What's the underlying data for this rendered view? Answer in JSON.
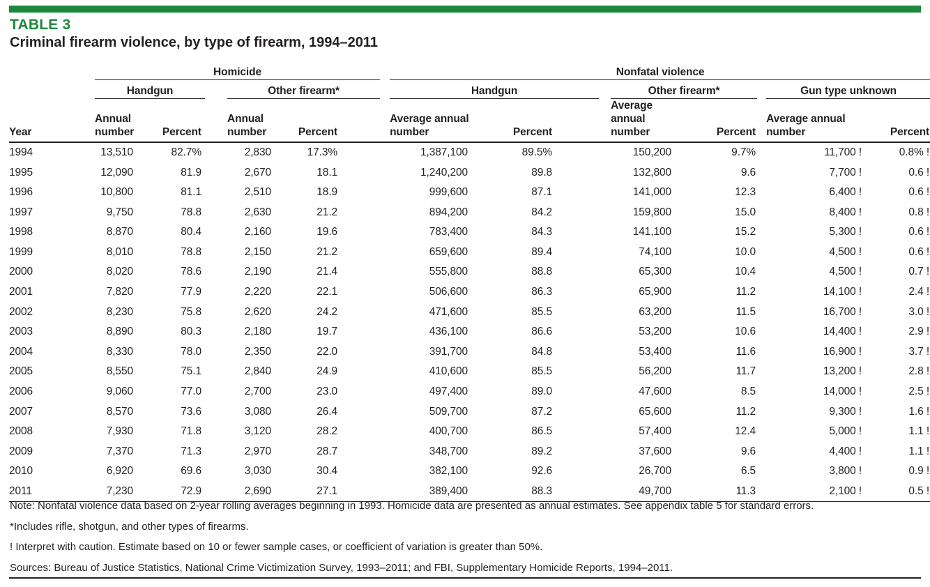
{
  "accent_color": "#1e873c",
  "header": {
    "table_label": "TABLE 3",
    "title": "Criminal firearm violence, by type of firearm, 1994–2011"
  },
  "table": {
    "groups": {
      "homicide": "Homicide",
      "nonfatal": "Nonfatal violence"
    },
    "subgroups": {
      "homicide_handgun": "Handgun",
      "homicide_other": "Other firearm*",
      "nonfatal_handgun": "Handgun",
      "nonfatal_other": "Other firearm*",
      "nonfatal_unknown": "Gun type unknown"
    },
    "columns": {
      "year": "Year",
      "annual_number": "Annual\nnumber",
      "avg_annual_number": "Average annual\nnumber",
      "percent": "Percent"
    },
    "rows": [
      [
        "1994",
        "13,510",
        "82.7%",
        "2,830",
        "17.3%",
        "1,387,100",
        "89.5%",
        "150,200",
        "9.7%",
        "11,700 !",
        "0.8% !"
      ],
      [
        "1995",
        "12,090",
        "81.9",
        "2,670",
        "18.1",
        "1,240,200",
        "89.8",
        "132,800",
        "9.6",
        "7,700 !",
        "0.6 !"
      ],
      [
        "1996",
        "10,800",
        "81.1",
        "2,510",
        "18.9",
        "999,600",
        "87.1",
        "141,000",
        "12.3",
        "6,400 !",
        "0.6 !"
      ],
      [
        "1997",
        "9,750",
        "78.8",
        "2,630",
        "21.2",
        "894,200",
        "84.2",
        "159,800",
        "15.0",
        "8,400 !",
        "0.8 !"
      ],
      [
        "1998",
        "8,870",
        "80.4",
        "2,160",
        "19.6",
        "783,400",
        "84.3",
        "141,100",
        "15.2",
        "5,300 !",
        "0.6 !"
      ],
      [
        "1999",
        "8,010",
        "78.8",
        "2,150",
        "21.2",
        "659,600",
        "89.4",
        "74,100",
        "10.0",
        "4,500 !",
        "0.6 !"
      ],
      [
        "2000",
        "8,020",
        "78.6",
        "2,190",
        "21.4",
        "555,800",
        "88.8",
        "65,300",
        "10.4",
        "4,500 !",
        "0.7 !"
      ],
      [
        "2001",
        "7,820",
        "77.9",
        "2,220",
        "22.1",
        "506,600",
        "86.3",
        "65,900",
        "11.2",
        "14,100 !",
        "2.4 !"
      ],
      [
        "2002",
        "8,230",
        "75.8",
        "2,620",
        "24.2",
        "471,600",
        "85.5",
        "63,200",
        "11.5",
        "16,700 !",
        "3.0 !"
      ],
      [
        "2003",
        "8,890",
        "80.3",
        "2,180",
        "19.7",
        "436,100",
        "86.6",
        "53,200",
        "10.6",
        "14,400 !",
        "2.9 !"
      ],
      [
        "2004",
        "8,330",
        "78.0",
        "2,350",
        "22.0",
        "391,700",
        "84.8",
        "53,400",
        "11.6",
        "16,900 !",
        "3.7 !"
      ],
      [
        "2005",
        "8,550",
        "75.1",
        "2,840",
        "24.9",
        "410,600",
        "85.5",
        "56,200",
        "11.7",
        "13,200 !",
        "2.8 !"
      ],
      [
        "2006",
        "9,060",
        "77.0",
        "2,700",
        "23.0",
        "497,400",
        "89.0",
        "47,600",
        "8.5",
        "14,000 !",
        "2.5 !"
      ],
      [
        "2007",
        "8,570",
        "73.6",
        "3,080",
        "26.4",
        "509,700",
        "87.2",
        "65,600",
        "11.2",
        "9,300 !",
        "1.6 !"
      ],
      [
        "2008",
        "7,930",
        "71.8",
        "3,120",
        "28.2",
        "400,700",
        "86.5",
        "57,400",
        "12.4",
        "5,000 !",
        "1.1 !"
      ],
      [
        "2009",
        "7,370",
        "71.3",
        "2,970",
        "28.7",
        "348,700",
        "89.2",
        "37,600",
        "9.6",
        "4,400 !",
        "1.1 !"
      ],
      [
        "2010",
        "6,920",
        "69.6",
        "3,030",
        "30.4",
        "382,100",
        "92.6",
        "26,700",
        "6.5",
        "3,800 !",
        "0.9 !"
      ],
      [
        "2011",
        "7,230",
        "72.9",
        "2,690",
        "27.1",
        "389,400",
        "88.3",
        "49,700",
        "11.3",
        "2,100 !",
        "0.5 !"
      ]
    ]
  },
  "footnotes": [
    "Note: Nonfatal violence data based on 2-year rolling averages beginning in 1993. Homicide data are presented as annual estimates. See appendix table 5 for standard errors.",
    "*Includes rifle, shotgun, and other types of firearms.",
    "! Interpret with caution. Estimate based on 10 or fewer sample cases, or coefficient of variation is greater than 50%.",
    "Sources: Bureau of Justice Statistics, National Crime Victimization Survey, 1993–2011; and FBI, Supplementary Homicide Reports, 1994–2011."
  ]
}
